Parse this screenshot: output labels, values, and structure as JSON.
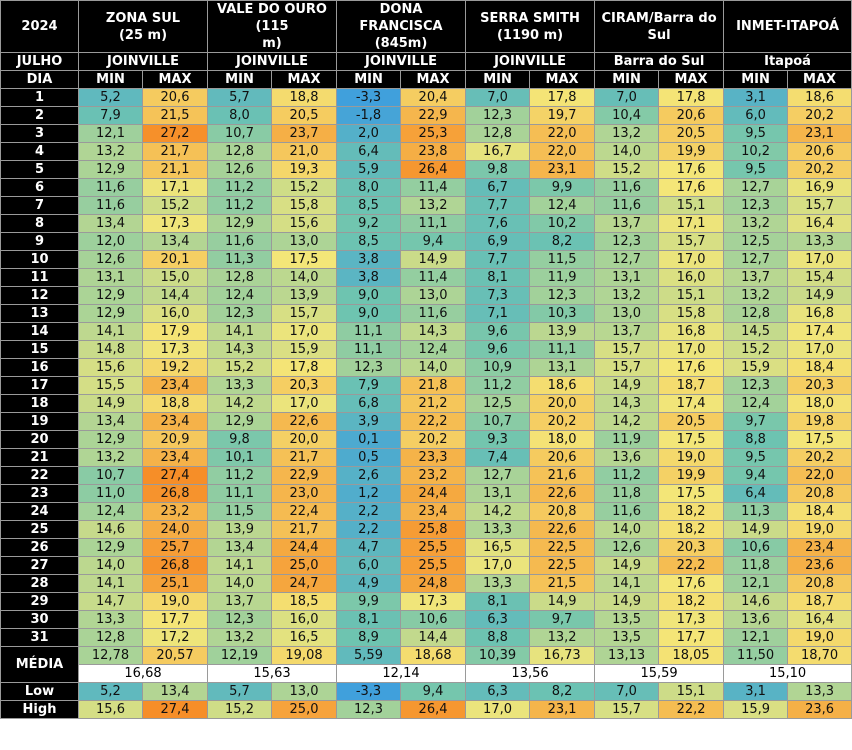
{
  "year": "2024",
  "month": "JULHO",
  "day_label": "DIA",
  "min_label": "MIN",
  "max_label": "MAX",
  "media_label": "MÉDIA",
  "low_label": "Low",
  "high_label": "High",
  "stations": [
    {
      "name": "ZONA SUL\n(25 m)",
      "city": "JOINVILLE"
    },
    {
      "name": "VALE DO OURO (115\nm)",
      "city": "JOINVILLE"
    },
    {
      "name": "DONA FRANCISCA\n(845m)",
      "city": "JOINVILLE"
    },
    {
      "name": "SERRA SMITH\n(1190 m)",
      "city": "JOINVILLE"
    },
    {
      "name": "CIRAM/Barra do Sul",
      "city": "Barra do Sul"
    },
    {
      "name": "INMET-ITAPOÁ",
      "city": "Itapoá"
    }
  ],
  "rows": [
    [
      "5,2",
      "20,6",
      "5,7",
      "18,8",
      "-3,3",
      "20,4",
      "7,0",
      "17,8",
      "7,0",
      "17,8",
      "3,1",
      "18,6"
    ],
    [
      "7,9",
      "21,5",
      "8,0",
      "20,5",
      "-1,8",
      "22,9",
      "12,3",
      "19,7",
      "10,4",
      "20,6",
      "6,0",
      "20,2"
    ],
    [
      "12,1",
      "27,2",
      "10,7",
      "23,7",
      "2,0",
      "25,3",
      "12,8",
      "22,0",
      "13,2",
      "20,5",
      "9,5",
      "23,1"
    ],
    [
      "13,2",
      "21,7",
      "12,8",
      "21,0",
      "6,4",
      "23,8",
      "16,7",
      "22,0",
      "14,0",
      "19,9",
      "10,2",
      "20,6"
    ],
    [
      "12,9",
      "21,1",
      "12,6",
      "19,3",
      "5,9",
      "26,4",
      "9,8",
      "23,1",
      "15,2",
      "17,6",
      "9,5",
      "20,2"
    ],
    [
      "11,6",
      "17,1",
      "11,2",
      "15,2",
      "8,0",
      "11,4",
      "6,7",
      "9,9",
      "11,6",
      "17,6",
      "12,7",
      "16,9"
    ],
    [
      "11,6",
      "15,2",
      "11,2",
      "15,8",
      "8,5",
      "13,2",
      "7,7",
      "12,4",
      "11,6",
      "15,1",
      "12,3",
      "15,7"
    ],
    [
      "13,4",
      "17,3",
      "12,9",
      "15,6",
      "9,2",
      "11,1",
      "7,6",
      "10,2",
      "13,7",
      "17,1",
      "13,2",
      "16,4"
    ],
    [
      "12,0",
      "13,4",
      "11,6",
      "13,0",
      "8,5",
      "9,4",
      "6,9",
      "8,2",
      "12,3",
      "15,7",
      "12,5",
      "13,3"
    ],
    [
      "12,6",
      "20,1",
      "11,3",
      "17,5",
      "3,8",
      "14,9",
      "7,7",
      "11,5",
      "12,7",
      "17,0",
      "12,7",
      "17,0"
    ],
    [
      "13,1",
      "15,0",
      "12,8",
      "14,0",
      "3,8",
      "11,4",
      "8,1",
      "11,9",
      "13,1",
      "16,0",
      "13,7",
      "15,4"
    ],
    [
      "12,9",
      "14,4",
      "12,4",
      "13,9",
      "9,0",
      "13,0",
      "7,3",
      "12,3",
      "13,2",
      "15,1",
      "13,2",
      "14,9"
    ],
    [
      "12,9",
      "16,0",
      "12,3",
      "15,7",
      "9,0",
      "11,6",
      "7,1",
      "10,3",
      "13,0",
      "15,8",
      "12,8",
      "16,8"
    ],
    [
      "14,1",
      "17,9",
      "14,1",
      "17,0",
      "11,1",
      "14,3",
      "9,6",
      "13,9",
      "13,7",
      "16,8",
      "14,5",
      "17,4"
    ],
    [
      "14,8",
      "17,3",
      "14,3",
      "15,9",
      "11,1",
      "12,4",
      "9,6",
      "11,1",
      "15,7",
      "17,0",
      "15,2",
      "17,0"
    ],
    [
      "15,6",
      "19,2",
      "15,2",
      "17,8",
      "12,3",
      "14,0",
      "10,9",
      "13,1",
      "15,7",
      "17,6",
      "15,9",
      "18,4"
    ],
    [
      "15,5",
      "23,4",
      "13,3",
      "20,3",
      "7,9",
      "21,8",
      "11,2",
      "18,6",
      "14,9",
      "18,7",
      "12,3",
      "20,3"
    ],
    [
      "14,9",
      "18,8",
      "14,2",
      "17,0",
      "6,8",
      "21,2",
      "12,5",
      "20,0",
      "14,3",
      "17,4",
      "12,4",
      "18,0"
    ],
    [
      "13,4",
      "23,4",
      "12,9",
      "22,6",
      "3,9",
      "22,2",
      "10,7",
      "20,2",
      "14,2",
      "20,5",
      "9,7",
      "19,8"
    ],
    [
      "12,9",
      "20,9",
      "9,8",
      "20,0",
      "0,1",
      "20,2",
      "9,3",
      "18,0",
      "11,9",
      "17,5",
      "8,8",
      "17,5"
    ],
    [
      "13,2",
      "23,4",
      "10,1",
      "21,7",
      "0,5",
      "23,3",
      "7,4",
      "20,6",
      "13,6",
      "19,0",
      "9,5",
      "20,2"
    ],
    [
      "10,7",
      "27,4",
      "11,2",
      "22,9",
      "2,6",
      "23,2",
      "12,7",
      "21,6",
      "11,2",
      "19,9",
      "9,4",
      "22,0"
    ],
    [
      "11,0",
      "26,8",
      "11,1",
      "23,0",
      "1,2",
      "24,4",
      "13,1",
      "22,6",
      "11,8",
      "17,5",
      "6,4",
      "20,8"
    ],
    [
      "12,4",
      "23,2",
      "11,5",
      "22,4",
      "2,2",
      "23,4",
      "14,2",
      "20,8",
      "11,6",
      "18,2",
      "11,3",
      "18,4"
    ],
    [
      "14,6",
      "24,0",
      "13,9",
      "21,7",
      "2,2",
      "25,8",
      "13,3",
      "22,6",
      "14,0",
      "18,2",
      "14,9",
      "19,0"
    ],
    [
      "12,9",
      "25,7",
      "13,4",
      "24,4",
      "4,7",
      "25,5",
      "16,5",
      "22,5",
      "12,6",
      "20,3",
      "10,6",
      "23,4"
    ],
    [
      "14,0",
      "26,8",
      "14,1",
      "25,0",
      "6,0",
      "25,5",
      "17,0",
      "22,5",
      "14,9",
      "22,2",
      "11,8",
      "23,6"
    ],
    [
      "14,1",
      "25,1",
      "14,0",
      "24,7",
      "4,9",
      "24,8",
      "13,3",
      "21,5",
      "14,1",
      "17,6",
      "12,1",
      "20,8"
    ],
    [
      "14,7",
      "19,0",
      "13,7",
      "18,5",
      "9,9",
      "17,3",
      "8,1",
      "14,9",
      "14,9",
      "18,2",
      "14,6",
      "18,7"
    ],
    [
      "13,3",
      "17,7",
      "12,3",
      "16,0",
      "8,1",
      "10,6",
      "6,3",
      "9,7",
      "13,5",
      "17,3",
      "13,6",
      "16,4"
    ],
    [
      "12,8",
      "17,2",
      "13,2",
      "16,5",
      "8,9",
      "14,4",
      "8,8",
      "13,2",
      "13,5",
      "17,7",
      "12,1",
      "19,0"
    ]
  ],
  "media": [
    "12,78",
    "20,57",
    "12,19",
    "19,08",
    "5,59",
    "18,68",
    "10,39",
    "16,73",
    "13,13",
    "18,05",
    "11,50",
    "18,70"
  ],
  "media_overall": [
    "16,68",
    "15,63",
    "12,14",
    "13,56",
    "15,59",
    "15,10"
  ],
  "low": [
    "5,2",
    "13,4",
    "5,7",
    "13,0",
    "-3,3",
    "9,4",
    "6,3",
    "8,2",
    "7,0",
    "15,1",
    "3,1",
    "13,3"
  ],
  "high": [
    "15,6",
    "27,4",
    "15,2",
    "25,0",
    "12,3",
    "26,4",
    "17,0",
    "23,1",
    "15,7",
    "22,2",
    "15,9",
    "23,6"
  ]
}
